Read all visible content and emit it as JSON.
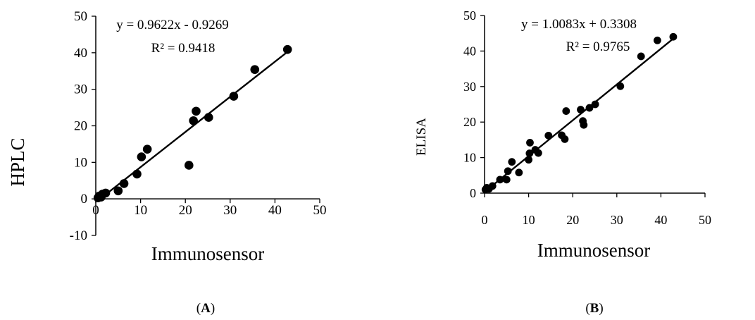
{
  "chart_data": [
    {
      "type": "scatter",
      "panel_label": "(A)",
      "panel_letter": "A",
      "xlabel": "Immunosensor",
      "ylabel": "HPLC",
      "xlim": [
        0,
        50
      ],
      "ylim": [
        -10,
        50
      ],
      "x_ticks": [
        "0",
        "10",
        "20",
        "30",
        "40",
        "50"
      ],
      "y_ticks": [
        "-10",
        "0",
        "10",
        "20",
        "30",
        "40",
        "50"
      ],
      "equation": "y = 0.9622x - 0.9269",
      "r_squared": "R² = 0.9418",
      "trendline": {
        "slope": 0.9622,
        "intercept": -0.9269
      },
      "grid": false,
      "points": [
        [
          0.5,
          0.3
        ],
        [
          0.8,
          0.8
        ],
        [
          1.2,
          0.5
        ],
        [
          1.5,
          1.3
        ],
        [
          2.2,
          1.6
        ],
        [
          5.0,
          2.2
        ],
        [
          6.3,
          4.2
        ],
        [
          9.2,
          6.8
        ],
        [
          10.2,
          11.5
        ],
        [
          11.5,
          13.6
        ],
        [
          20.8,
          9.2
        ],
        [
          21.8,
          21.4
        ],
        [
          22.4,
          24.0
        ],
        [
          25.2,
          22.3
        ],
        [
          30.8,
          28.1
        ],
        [
          35.5,
          35.4
        ],
        [
          42.8,
          40.9
        ]
      ]
    },
    {
      "type": "scatter",
      "panel_label": "(B)",
      "panel_letter": "B",
      "xlabel": "Immunosensor",
      "ylabel": "ELISA",
      "xlim": [
        0,
        50
      ],
      "ylim": [
        0,
        50
      ],
      "x_ticks": [
        "0",
        "10",
        "20",
        "30",
        "40",
        "50"
      ],
      "y_ticks": [
        "0",
        "10",
        "20",
        "30",
        "40",
        "50"
      ],
      "equation": "y = 1.0083x + 0.3308",
      "r_squared": "R² = 0.9765",
      "trendline": {
        "slope": 1.0083,
        "intercept": 0.3308
      },
      "grid": false,
      "points": [
        [
          0.2,
          1.0
        ],
        [
          0.5,
          1.5
        ],
        [
          1.0,
          1.2
        ],
        [
          1.8,
          2.0
        ],
        [
          3.5,
          3.8
        ],
        [
          5.0,
          3.8
        ],
        [
          5.3,
          6.2
        ],
        [
          6.2,
          8.8
        ],
        [
          7.8,
          5.8
        ],
        [
          10.0,
          9.4
        ],
        [
          10.2,
          11.2
        ],
        [
          10.3,
          14.2
        ],
        [
          11.5,
          12.2
        ],
        [
          12.2,
          11.3
        ],
        [
          14.5,
          16.2
        ],
        [
          17.5,
          16.3
        ],
        [
          18.2,
          15.2
        ],
        [
          18.5,
          23.1
        ],
        [
          21.8,
          23.5
        ],
        [
          22.3,
          20.3
        ],
        [
          22.5,
          19.2
        ],
        [
          23.8,
          24.0
        ],
        [
          25.1,
          25.0
        ],
        [
          30.8,
          30.1
        ],
        [
          35.5,
          38.5
        ],
        [
          39.2,
          43.0
        ],
        [
          42.8,
          44.0
        ]
      ]
    }
  ]
}
